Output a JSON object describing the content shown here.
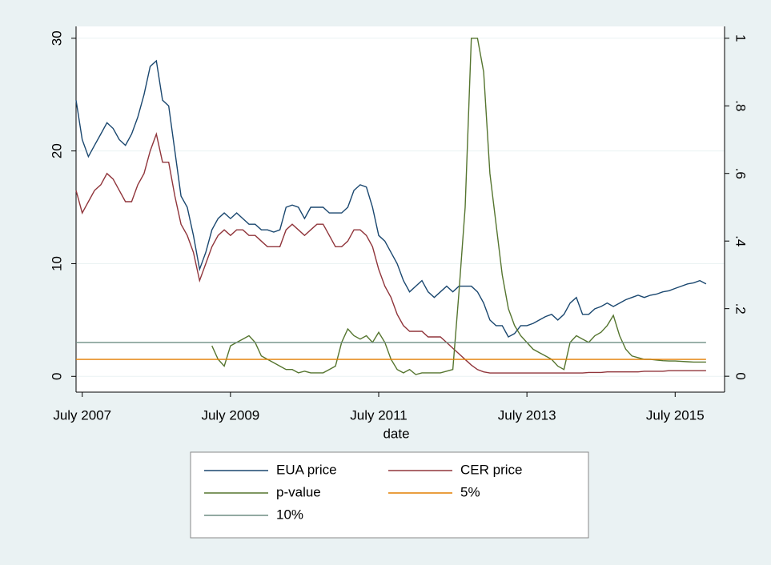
{
  "chart_data": {
    "type": "line",
    "x_label": "date",
    "x": [
      "2007-06",
      "2007-07",
      "2007-08",
      "2007-09",
      "2007-10",
      "2007-11",
      "2007-12",
      "2008-01",
      "2008-02",
      "2008-03",
      "2008-04",
      "2008-05",
      "2008-06",
      "2008-07",
      "2008-08",
      "2008-09",
      "2008-10",
      "2008-11",
      "2008-12",
      "2009-01",
      "2009-02",
      "2009-03",
      "2009-04",
      "2009-05",
      "2009-06",
      "2009-07",
      "2009-08",
      "2009-09",
      "2009-10",
      "2009-11",
      "2009-12",
      "2010-01",
      "2010-02",
      "2010-03",
      "2010-04",
      "2010-05",
      "2010-06",
      "2010-07",
      "2010-08",
      "2010-09",
      "2010-10",
      "2010-11",
      "2010-12",
      "2011-01",
      "2011-02",
      "2011-03",
      "2011-04",
      "2011-05",
      "2011-06",
      "2011-07",
      "2011-08",
      "2011-09",
      "2011-10",
      "2011-11",
      "2011-12",
      "2012-01",
      "2012-02",
      "2012-03",
      "2012-04",
      "2012-05",
      "2012-06",
      "2012-07",
      "2012-08",
      "2012-09",
      "2012-10",
      "2012-11",
      "2012-12",
      "2013-01",
      "2013-02",
      "2013-03",
      "2013-04",
      "2013-05",
      "2013-06",
      "2013-07",
      "2013-08",
      "2013-09",
      "2013-10",
      "2013-11",
      "2013-12",
      "2014-01",
      "2014-02",
      "2014-03",
      "2014-04",
      "2014-05",
      "2014-06",
      "2014-07",
      "2014-08",
      "2014-09",
      "2014-10",
      "2014-11",
      "2014-12",
      "2015-01",
      "2015-02",
      "2015-03",
      "2015-04",
      "2015-05",
      "2015-06",
      "2015-07",
      "2015-08",
      "2015-09",
      "2015-10",
      "2015-11",
      "2015-12"
    ],
    "series": [
      {
        "name": "EUA price",
        "color": "#1a476f",
        "axis": "y",
        "values": [
          24.5,
          21,
          19.5,
          20.5,
          21.5,
          22.5,
          22,
          21,
          20.5,
          21.5,
          23,
          25,
          27.5,
          28,
          24.5,
          24,
          20,
          16,
          15,
          12.5,
          9.5,
          11,
          13,
          14,
          14.5,
          14,
          14.5,
          14,
          13.5,
          13.5,
          13,
          13,
          12.8,
          13,
          15,
          15.2,
          15,
          14,
          15,
          15,
          15,
          14.5,
          14.5,
          14.5,
          15,
          16.5,
          17,
          16.8,
          15,
          12.5,
          12,
          11,
          10,
          8.5,
          7.5,
          8,
          8.5,
          7.5,
          7,
          7.5,
          8,
          7.5,
          8,
          8,
          8,
          7.5,
          6.5,
          5,
          4.5,
          4.5,
          3.5,
          3.8,
          4.5,
          4.5,
          4.7,
          5,
          5.3,
          5.5,
          5,
          5.5,
          6.5,
          7,
          5.5,
          5.5,
          6,
          6.2,
          6.5,
          6.2,
          6.5,
          6.8,
          7,
          7.2,
          7,
          7.2,
          7.3,
          7.5,
          7.6,
          7.8,
          8,
          8.2,
          8.3,
          8.5,
          8.2
        ]
      },
      {
        "name": "CER price",
        "color": "#90353b",
        "axis": "y",
        "values": [
          16.5,
          14.5,
          15.5,
          16.5,
          17,
          18,
          17.5,
          16.5,
          15.5,
          15.5,
          17,
          18,
          20,
          21.5,
          19,
          19,
          16,
          13.5,
          12.5,
          11,
          8.5,
          10,
          11.5,
          12.5,
          13,
          12.5,
          13,
          13,
          12.5,
          12.5,
          12,
          11.5,
          11.5,
          11.5,
          13,
          13.5,
          13,
          12.5,
          13,
          13.5,
          13.5,
          12.5,
          11.5,
          11.5,
          12,
          13,
          13,
          12.5,
          11.5,
          9.5,
          8,
          7,
          5.5,
          4.5,
          4,
          4,
          4,
          3.5,
          3.5,
          3.5,
          3,
          2.5,
          2,
          1.5,
          1,
          0.6,
          0.4,
          0.3,
          0.3,
          0.3,
          0.3,
          0.3,
          0.3,
          0.3,
          0.3,
          0.3,
          0.3,
          0.3,
          0.3,
          0.3,
          0.3,
          0.3,
          0.3,
          0.35,
          0.35,
          0.35,
          0.4,
          0.4,
          0.4,
          0.4,
          0.4,
          0.4,
          0.45,
          0.45,
          0.45,
          0.45,
          0.5,
          0.5,
          0.5,
          0.5,
          0.5,
          0.5,
          0.5
        ]
      },
      {
        "name": "p-value",
        "color": "#55752f",
        "axis": "y2",
        "values": [
          null,
          null,
          null,
          null,
          null,
          null,
          null,
          null,
          null,
          null,
          null,
          null,
          null,
          null,
          null,
          null,
          null,
          null,
          null,
          null,
          null,
          null,
          0.09,
          0.05,
          0.03,
          0.09,
          0.1,
          0.11,
          0.12,
          0.1,
          0.06,
          0.05,
          0.04,
          0.03,
          0.02,
          0.02,
          0.01,
          0.015,
          0.01,
          0.01,
          0.01,
          0.02,
          0.03,
          0.1,
          0.14,
          0.12,
          0.11,
          0.12,
          0.1,
          0.13,
          0.1,
          0.05,
          0.02,
          0.01,
          0.02,
          0.005,
          0.01,
          0.01,
          0.01,
          0.01,
          0.015,
          0.02,
          0.25,
          0.5,
          1,
          1,
          0.9,
          0.6,
          0.45,
          0.3,
          0.2,
          0.15,
          0.12,
          0.1,
          0.08,
          0.07,
          0.06,
          0.05,
          0.03,
          0.02,
          0.1,
          0.12,
          0.11,
          0.1,
          0.12,
          0.13,
          0.15,
          0.18,
          0.12,
          0.08,
          0.06,
          0.055,
          0.05,
          0.05,
          0.048,
          0.046,
          0.045,
          0.045,
          0.044,
          0.043,
          0.042,
          0.042,
          0.042
        ]
      },
      {
        "name": "5%",
        "color": "#e37e00",
        "axis": "y2",
        "value": 0.05
      },
      {
        "name": "10%",
        "color": "#6e8e84",
        "axis": "y2",
        "value": 0.1
      }
    ],
    "xlim": [
      "2007-06",
      "2016-03"
    ],
    "xticks": [
      {
        "value": "2007-07",
        "label": "July 2007"
      },
      {
        "value": "2009-07",
        "label": "July 2009"
      },
      {
        "value": "2011-07",
        "label": "July 2011"
      },
      {
        "value": "2013-07",
        "label": "July 2013"
      },
      {
        "value": "2015-07",
        "label": "July 2015"
      }
    ],
    "ylim": [
      -1.4,
      31.05
    ],
    "yticks": [
      0,
      10,
      20,
      30
    ],
    "y2lim": [
      -0.047,
      1.035
    ],
    "y2ticks": [
      0,
      {
        "value": 0.2,
        "label": ".2"
      },
      {
        "value": 0.4,
        "label": ".4"
      },
      {
        "value": 0.6,
        "label": ".6"
      },
      {
        "value": 0.8,
        "label": ".8"
      },
      1
    ],
    "grid": true,
    "legend": "bottom"
  }
}
